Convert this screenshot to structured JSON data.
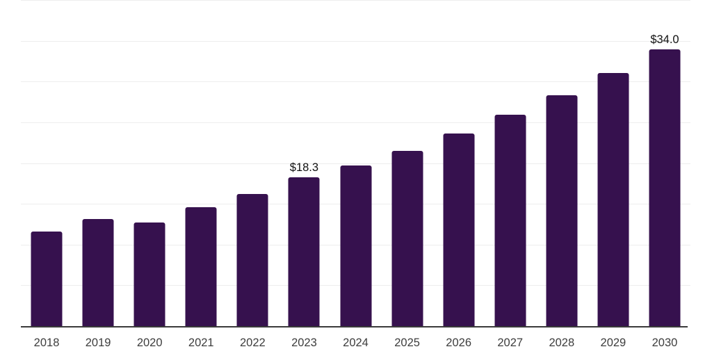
{
  "chart_data": {
    "type": "bar",
    "title": "",
    "xlabel": "",
    "ylabel": "",
    "categories": [
      "2018",
      "2019",
      "2020",
      "2021",
      "2022",
      "2023",
      "2024",
      "2025",
      "2026",
      "2027",
      "2028",
      "2029",
      "2030"
    ],
    "values": [
      11.7,
      13.2,
      12.8,
      14.7,
      16.3,
      18.3,
      19.8,
      21.6,
      23.7,
      26.0,
      28.4,
      31.1,
      34.0
    ],
    "data_labels": [
      "",
      "",
      "",
      "",
      "",
      "$18.3",
      "",
      "",
      "",
      "",
      "",
      "",
      "$34.0"
    ],
    "ylim": [
      0,
      40
    ],
    "grid_step": 5,
    "grid": "horizontal",
    "y_tick_labels_visible": false,
    "legend": "none",
    "colors": {
      "bar": "#36114E",
      "gridline": "#ededed",
      "axis_line": "#3a3a3a",
      "tick_label": "#3d3d3d",
      "value_label": "#111111",
      "background": "#ffffff"
    }
  }
}
